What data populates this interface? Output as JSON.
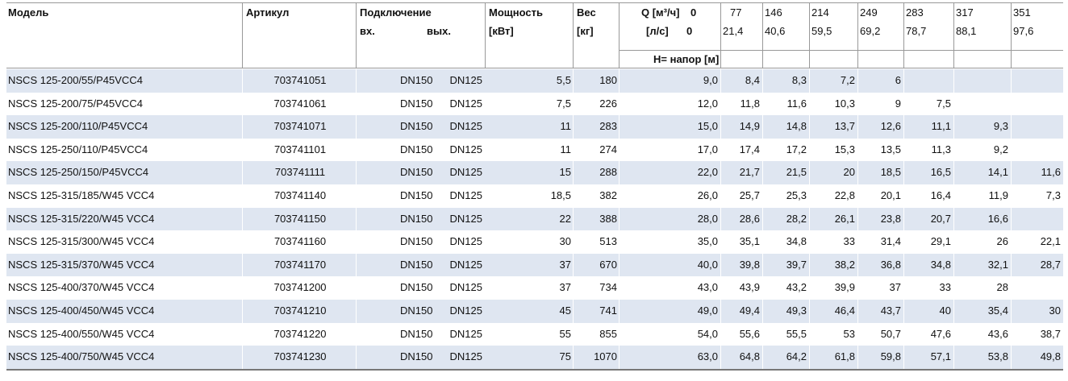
{
  "header": {
    "model": "Модель",
    "article": "Артикул",
    "connection": "Подключение",
    "inlet": "вх.",
    "outlet": "вых.",
    "power": "Мощность",
    "power_unit": "[кВт]",
    "weight": "Вес",
    "weight_unit": "[кг]",
    "flow_m3h_label": "Q [м³/ч]",
    "flow_ls_label": "[л/с]",
    "flow_m3h": [
      "0",
      "77",
      "146",
      "214",
      "249",
      "283",
      "317",
      "351"
    ],
    "flow_ls": [
      "0",
      "21,4",
      "40,6",
      "59,5",
      "69,2",
      "78,7",
      "88,1",
      "97,6"
    ],
    "head_label": "H= напор [м]"
  },
  "table": {
    "rows": [
      {
        "model": "NSCS 125-200/55/P45VCC4",
        "article": "703741051",
        "inlet": "DN150",
        "outlet": "DN125",
        "power": "5,5",
        "weight": "180",
        "head": [
          "9,0",
          "8,4",
          "8,3",
          "7,2",
          "6"
        ]
      },
      {
        "model": "NSCS 125-200/75/P45VCC4",
        "article": "703741061",
        "inlet": "DN150",
        "outlet": "DN125",
        "power": "7,5",
        "weight": "226",
        "head": [
          "12,0",
          "11,8",
          "11,6",
          "10,3",
          "9",
          "7,5"
        ]
      },
      {
        "model": "NSCS 125-200/110/P45VCC4",
        "article": "703741071",
        "inlet": "DN150",
        "outlet": "DN125",
        "power": "11",
        "weight": "283",
        "head": [
          "15,0",
          "14,9",
          "14,8",
          "13,7",
          "12,6",
          "11,1",
          "9,3"
        ]
      },
      {
        "model": "NSCS 125-250/110/P45VCC4",
        "article": "703741101",
        "inlet": "DN150",
        "outlet": "DN125",
        "power": "11",
        "weight": "274",
        "head": [
          "17,0",
          "17,4",
          "17,2",
          "15,3",
          "13,5",
          "11,3",
          "9,2"
        ]
      },
      {
        "model": "NSCS 125-250/150/P45VCC4",
        "article": "703741111",
        "inlet": "DN150",
        "outlet": "DN125",
        "power": "15",
        "weight": "288",
        "head": [
          "22,0",
          "21,7",
          "21,5",
          "20",
          "18,5",
          "16,5",
          "14,1",
          "11,6"
        ]
      },
      {
        "model": "NSCS 125-315/185/W45 VCC4",
        "article": "703741140",
        "inlet": "DN150",
        "outlet": "DN125",
        "power": "18,5",
        "weight": "382",
        "head": [
          "26,0",
          "25,7",
          "25,3",
          "22,8",
          "20,1",
          "16,4",
          "11,9",
          "7,3"
        ]
      },
      {
        "model": "NSCS 125-315/220/W45 VCC4",
        "article": "703741150",
        "inlet": "DN150",
        "outlet": "DN125",
        "power": "22",
        "weight": "388",
        "head": [
          "28,0",
          "28,6",
          "28,2",
          "26,1",
          "23,8",
          "20,7",
          "16,6"
        ]
      },
      {
        "model": "NSCS 125-315/300/W45 VCC4",
        "article": "703741160",
        "inlet": "DN150",
        "outlet": "DN125",
        "power": "30",
        "weight": "513",
        "head": [
          "35,0",
          "35,1",
          "34,8",
          "33",
          "31,4",
          "29,1",
          "26",
          "22,1"
        ]
      },
      {
        "model": "NSCS 125-315/370/W45 VCC4",
        "article": "703741170",
        "inlet": "DN150",
        "outlet": "DN125",
        "power": "37",
        "weight": "670",
        "head": [
          "40,0",
          "39,8",
          "39,7",
          "38,2",
          "36,8",
          "34,8",
          "32,1",
          "28,7"
        ]
      },
      {
        "model": "NSCS 125-400/370/W45 VCC4",
        "article": "703741200",
        "inlet": "DN150",
        "outlet": "DN125",
        "power": "37",
        "weight": "734",
        "head": [
          "43,0",
          "43,9",
          "43,2",
          "39,9",
          "37",
          "33",
          "28"
        ]
      },
      {
        "model": "NSCS 125-400/450/W45 VCC4",
        "article": "703741210",
        "inlet": "DN150",
        "outlet": "DN125",
        "power": "45",
        "weight": "741",
        "head": [
          "49,0",
          "49,4",
          "49,3",
          "46,4",
          "43,7",
          "40",
          "35,4",
          "30"
        ]
      },
      {
        "model": "NSCS 125-400/550/W45 VCC4",
        "article": "703741220",
        "inlet": "DN150",
        "outlet": "DN125",
        "power": "55",
        "weight": "855",
        "head": [
          "54,0",
          "55,6",
          "55,5",
          "53",
          "50,7",
          "47,6",
          "43,6",
          "38,7"
        ]
      },
      {
        "model": "NSCS 125-400/750/W45 VCC4",
        "article": "703741230",
        "inlet": "DN150",
        "outlet": "DN125",
        "power": "75",
        "weight": "1070",
        "head": [
          "63,0",
          "64,8",
          "64,2",
          "61,8",
          "59,8",
          "57,1",
          "53,8",
          "49,8"
        ]
      }
    ]
  }
}
